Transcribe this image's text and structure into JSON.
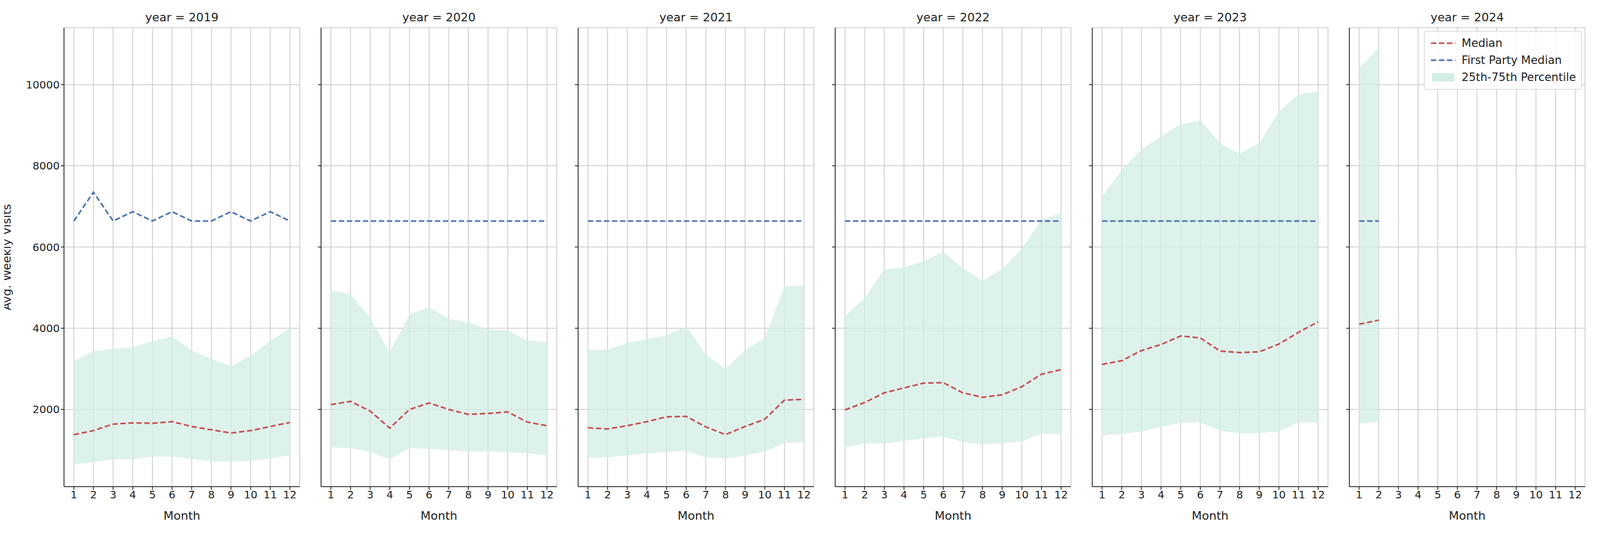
{
  "chart_data": [
    {
      "type": "line",
      "title": "year = 2019",
      "x_label": "Month",
      "y_label": "Avg. Weekly Visits",
      "x": [
        1,
        2,
        3,
        4,
        5,
        6,
        7,
        8,
        9,
        10,
        11,
        12
      ],
      "xlim": [
        0.5,
        12.5
      ],
      "xticks": [
        1,
        2,
        3,
        4,
        5,
        6,
        7,
        8,
        9,
        10,
        11,
        12
      ],
      "ylim": [
        100,
        11400
      ],
      "yticks": [
        2000,
        4000,
        6000,
        8000,
        10000
      ],
      "grid": true,
      "series": [
        {
          "name": "Median",
          "color": "#c44e52",
          "line_style": "dashed",
          "values": [
            1380,
            1480,
            1640,
            1670,
            1660,
            1700,
            1580,
            1500,
            1420,
            1480,
            1580,
            1680
          ]
        },
        {
          "name": "First Party Median",
          "color": "#4c72b0",
          "line_style": "dashed",
          "values": [
            6640,
            7350,
            6640,
            6870,
            6640,
            6870,
            6640,
            6640,
            6870,
            6640,
            6870,
            6640
          ]
        },
        {
          "name": "25th-75th Percentile",
          "type": "area",
          "color": "#d3eee6",
          "lower": [
            650,
            700,
            770,
            770,
            840,
            840,
            780,
            720,
            720,
            730,
            800,
            870
          ],
          "upper": [
            3200,
            3430,
            3500,
            3530,
            3680,
            3800,
            3450,
            3250,
            3070,
            3330,
            3690,
            4000
          ]
        }
      ]
    },
    {
      "type": "line",
      "title": "year = 2020",
      "x_label": "Month",
      "x": [
        1,
        2,
        3,
        4,
        5,
        6,
        7,
        8,
        9,
        10,
        11,
        12
      ],
      "xlim": [
        0.5,
        12.5
      ],
      "xticks": [
        1,
        2,
        3,
        4,
        5,
        6,
        7,
        8,
        9,
        10,
        11,
        12
      ],
      "ylim": [
        100,
        11400
      ],
      "yticks": [
        2000,
        4000,
        6000,
        8000,
        10000
      ],
      "grid": true,
      "tick_labels": "x",
      "series": [
        {
          "name": "Median",
          "color": "#c44e52",
          "line_style": "dashed",
          "values": [
            2120,
            2200,
            1960,
            1540,
            2000,
            2160,
            2000,
            1880,
            1900,
            1940,
            1690,
            1600
          ]
        },
        {
          "name": "First Party Median",
          "color": "#4c72b0",
          "line_style": "dashed",
          "values": [
            6640,
            6640,
            6640,
            6640,
            6640,
            6640,
            6640,
            6640,
            6640,
            6640,
            6640,
            6640
          ]
        },
        {
          "name": "25th-75th Percentile",
          "type": "area",
          "color": "#d3eee6",
          "lower": [
            1060,
            1050,
            950,
            780,
            1050,
            1030,
            1000,
            960,
            960,
            950,
            920,
            870
          ],
          "upper": [
            4920,
            4840,
            4250,
            3400,
            4350,
            4520,
            4230,
            4150,
            3970,
            3950,
            3700,
            3650
          ]
        }
      ]
    },
    {
      "type": "line",
      "title": "year = 2021",
      "x_label": "Month",
      "x": [
        1,
        2,
        3,
        4,
        5,
        6,
        7,
        8,
        9,
        10,
        11,
        12
      ],
      "xlim": [
        0.5,
        12.5
      ],
      "xticks": [
        1,
        2,
        3,
        4,
        5,
        6,
        7,
        8,
        9,
        10,
        11,
        12
      ],
      "ylim": [
        100,
        11400
      ],
      "yticks": [
        2000,
        4000,
        6000,
        8000,
        10000
      ],
      "grid": true,
      "tick_labels": "x",
      "series": [
        {
          "name": "Median",
          "color": "#c44e52",
          "line_style": "dashed",
          "values": [
            1550,
            1520,
            1600,
            1700,
            1820,
            1830,
            1570,
            1380,
            1580,
            1760,
            2230,
            2250
          ]
        },
        {
          "name": "First Party Median",
          "color": "#4c72b0",
          "line_style": "dashed",
          "values": [
            6640,
            6640,
            6640,
            6640,
            6640,
            6640,
            6640,
            6640,
            6640,
            6640,
            6640,
            6640
          ]
        },
        {
          "name": "25th-75th Percentile",
          "type": "area",
          "color": "#d3eee6",
          "lower": [
            820,
            820,
            870,
            920,
            950,
            980,
            820,
            790,
            860,
            960,
            1170,
            1200
          ],
          "upper": [
            3470,
            3470,
            3640,
            3740,
            3820,
            4050,
            3350,
            3000,
            3460,
            3760,
            5030,
            5050
          ]
        }
      ]
    },
    {
      "type": "line",
      "title": "year = 2022",
      "x_label": "Month",
      "x": [
        1,
        2,
        3,
        4,
        5,
        6,
        7,
        8,
        9,
        10,
        11,
        12
      ],
      "xlim": [
        0.5,
        12.5
      ],
      "xticks": [
        1,
        2,
        3,
        4,
        5,
        6,
        7,
        8,
        9,
        10,
        11,
        12
      ],
      "ylim": [
        100,
        11400
      ],
      "yticks": [
        2000,
        4000,
        6000,
        8000,
        10000
      ],
      "grid": true,
      "tick_labels": "x",
      "series": [
        {
          "name": "Median",
          "color": "#c44e52",
          "line_style": "dashed",
          "values": [
            1990,
            2170,
            2410,
            2530,
            2650,
            2660,
            2410,
            2300,
            2360,
            2560,
            2870,
            2980
          ]
        },
        {
          "name": "First Party Median",
          "color": "#4c72b0",
          "line_style": "dashed",
          "values": [
            6640,
            6640,
            6640,
            6640,
            6640,
            6640,
            6640,
            6640,
            6640,
            6640,
            6640,
            6640
          ]
        },
        {
          "name": "25th-75th Percentile",
          "type": "area",
          "color": "#d3eee6",
          "lower": [
            1070,
            1160,
            1160,
            1230,
            1290,
            1330,
            1200,
            1140,
            1170,
            1210,
            1410,
            1380
          ],
          "upper": [
            4300,
            4750,
            5450,
            5500,
            5650,
            5880,
            5480,
            5170,
            5460,
            5960,
            6680,
            6830
          ]
        }
      ]
    },
    {
      "type": "line",
      "title": "year = 2023",
      "x_label": "Month",
      "x": [
        1,
        2,
        3,
        4,
        5,
        6,
        7,
        8,
        9,
        10,
        11,
        12
      ],
      "xlim": [
        0.5,
        12.5
      ],
      "xticks": [
        1,
        2,
        3,
        4,
        5,
        6,
        7,
        8,
        9,
        10,
        11,
        12
      ],
      "ylim": [
        100,
        11400
      ],
      "yticks": [
        2000,
        4000,
        6000,
        8000,
        10000
      ],
      "grid": true,
      "tick_labels": "x",
      "series": [
        {
          "name": "Median",
          "color": "#c44e52",
          "line_style": "dashed",
          "values": [
            3110,
            3200,
            3450,
            3600,
            3810,
            3760,
            3440,
            3400,
            3420,
            3610,
            3900,
            4160
          ]
        },
        {
          "name": "First Party Median",
          "color": "#4c72b0",
          "line_style": "dashed",
          "values": [
            6640,
            6640,
            6640,
            6640,
            6640,
            6640,
            6640,
            6640,
            6640,
            6640,
            6640,
            6640
          ]
        },
        {
          "name": "25th-75th Percentile",
          "type": "area",
          "color": "#d3eee6",
          "lower": [
            1360,
            1400,
            1460,
            1570,
            1670,
            1680,
            1480,
            1410,
            1420,
            1460,
            1680,
            1680
          ],
          "upper": [
            7250,
            7900,
            8400,
            8720,
            9020,
            9120,
            8560,
            8300,
            8560,
            9340,
            9760,
            9830
          ]
        }
      ]
    },
    {
      "type": "line",
      "title": "year = 2024",
      "x_label": "Month",
      "x": [
        1,
        2,
        3,
        4,
        5,
        6,
        7,
        8,
        9,
        10,
        11,
        12
      ],
      "xlim": [
        0.5,
        12.5
      ],
      "xticks": [
        1,
        2,
        3,
        4,
        5,
        6,
        7,
        8,
        9,
        10,
        11,
        12
      ],
      "ylim": [
        100,
        11400
      ],
      "yticks": [
        2000,
        4000,
        6000,
        8000,
        10000
      ],
      "grid": true,
      "tick_labels": "x",
      "legend": "upper right",
      "series": [
        {
          "name": "Median",
          "color": "#c44e52",
          "line_style": "dashed",
          "values": [
            4100,
            4200,
            null,
            null,
            null,
            null,
            null,
            null,
            null,
            null,
            null,
            null
          ]
        },
        {
          "name": "First Party Median",
          "color": "#4c72b0",
          "line_style": "dashed",
          "values": [
            6640,
            6640,
            null,
            null,
            null,
            null,
            null,
            null,
            null,
            null,
            null,
            null
          ]
        },
        {
          "name": "25th-75th Percentile",
          "type": "area",
          "color": "#d3eee6",
          "lower": [
            1650,
            1700,
            null,
            null,
            null,
            null,
            null,
            null,
            null,
            null,
            null,
            null
          ],
          "upper": [
            10400,
            10900,
            null,
            null,
            null,
            null,
            null,
            null,
            null,
            null,
            null,
            null
          ]
        }
      ]
    }
  ]
}
